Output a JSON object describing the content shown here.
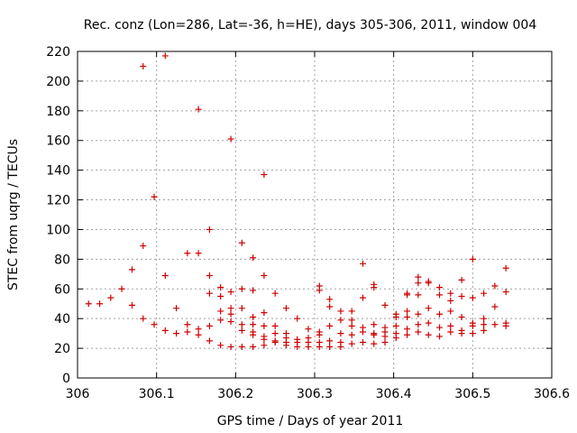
{
  "chart_data": {
    "type": "scatter",
    "title": "Rec. conz (Lon=286, Lat=-36, h=HE), days 305-306, 2011, window 004",
    "xlabel": "GPS time / Days of year 2011",
    "ylabel": "STEC from uqrg / TECUs",
    "xlim": [
      306.0,
      306.6
    ],
    "ylim": [
      0,
      220
    ],
    "xticks": [
      306,
      306.1,
      306.2,
      306.3,
      306.4,
      306.5,
      306.6
    ],
    "xtick_labels": [
      "306",
      "306.1",
      "306.2",
      "306.3",
      "306.4",
      "306.5",
      "306.6"
    ],
    "yticks": [
      0,
      20,
      40,
      60,
      80,
      100,
      120,
      140,
      160,
      180,
      200,
      220
    ],
    "ytick_labels": [
      "0",
      "20",
      "40",
      "60",
      "80",
      "100",
      "120",
      "140",
      "160",
      "180",
      "200",
      "220"
    ],
    "grid": true,
    "marker": "+",
    "series_color": "#d00000",
    "series": [
      {
        "name": "STEC",
        "points": [
          [
            306.014,
            50
          ],
          [
            306.028,
            50
          ],
          [
            306.042,
            54
          ],
          [
            306.056,
            60
          ],
          [
            306.069,
            73
          ],
          [
            306.069,
            49
          ],
          [
            306.083,
            210
          ],
          [
            306.083,
            89
          ],
          [
            306.083,
            40
          ],
          [
            306.097,
            122
          ],
          [
            306.097,
            36
          ],
          [
            306.111,
            217
          ],
          [
            306.111,
            69
          ],
          [
            306.111,
            32
          ],
          [
            306.125,
            47
          ],
          [
            306.125,
            30
          ],
          [
            306.139,
            84
          ],
          [
            306.139,
            36
          ],
          [
            306.139,
            31
          ],
          [
            306.153,
            181
          ],
          [
            306.153,
            84
          ],
          [
            306.153,
            33
          ],
          [
            306.153,
            29
          ],
          [
            306.167,
            100
          ],
          [
            306.167,
            69
          ],
          [
            306.167,
            57
          ],
          [
            306.167,
            35
          ],
          [
            306.167,
            25
          ],
          [
            306.181,
            61
          ],
          [
            306.181,
            55
          ],
          [
            306.181,
            45
          ],
          [
            306.181,
            39
          ],
          [
            306.181,
            22
          ],
          [
            306.194,
            161
          ],
          [
            306.194,
            58
          ],
          [
            306.194,
            47
          ],
          [
            306.194,
            43
          ],
          [
            306.194,
            38
          ],
          [
            306.194,
            21
          ],
          [
            306.208,
            91
          ],
          [
            306.208,
            60
          ],
          [
            306.208,
            47
          ],
          [
            306.208,
            36
          ],
          [
            306.208,
            32
          ],
          [
            306.208,
            21
          ],
          [
            306.222,
            81
          ],
          [
            306.222,
            59
          ],
          [
            306.222,
            41
          ],
          [
            306.222,
            36
          ],
          [
            306.222,
            31
          ],
          [
            306.222,
            29
          ],
          [
            306.222,
            21
          ],
          [
            306.236,
            137
          ],
          [
            306.236,
            69
          ],
          [
            306.236,
            44
          ],
          [
            306.236,
            35
          ],
          [
            306.236,
            28
          ],
          [
            306.236,
            26
          ],
          [
            306.236,
            22
          ],
          [
            306.25,
            57
          ],
          [
            306.25,
            35
          ],
          [
            306.25,
            30
          ],
          [
            306.25,
            25
          ],
          [
            306.25,
            24
          ],
          [
            306.264,
            47
          ],
          [
            306.264,
            30
          ],
          [
            306.264,
            27
          ],
          [
            306.264,
            24
          ],
          [
            306.264,
            22
          ],
          [
            306.278,
            40
          ],
          [
            306.278,
            26
          ],
          [
            306.278,
            24
          ],
          [
            306.278,
            21
          ],
          [
            306.292,
            33
          ],
          [
            306.292,
            27
          ],
          [
            306.292,
            24
          ],
          [
            306.292,
            21
          ],
          [
            306.306,
            62
          ],
          [
            306.306,
            59
          ],
          [
            306.306,
            31
          ],
          [
            306.306,
            29
          ],
          [
            306.306,
            24
          ],
          [
            306.306,
            21
          ],
          [
            306.319,
            53
          ],
          [
            306.319,
            48
          ],
          [
            306.319,
            35
          ],
          [
            306.319,
            25
          ],
          [
            306.319,
            21
          ],
          [
            306.333,
            45
          ],
          [
            306.333,
            39
          ],
          [
            306.333,
            30
          ],
          [
            306.333,
            24
          ],
          [
            306.333,
            21
          ],
          [
            306.347,
            45
          ],
          [
            306.347,
            39
          ],
          [
            306.347,
            35
          ],
          [
            306.347,
            29
          ],
          [
            306.347,
            23
          ],
          [
            306.361,
            77
          ],
          [
            306.361,
            54
          ],
          [
            306.361,
            34
          ],
          [
            306.361,
            31
          ],
          [
            306.361,
            24
          ],
          [
            306.375,
            63
          ],
          [
            306.375,
            61
          ],
          [
            306.375,
            36
          ],
          [
            306.375,
            30
          ],
          [
            306.375,
            29
          ],
          [
            306.375,
            23
          ],
          [
            306.389,
            49
          ],
          [
            306.389,
            34
          ],
          [
            306.389,
            31
          ],
          [
            306.389,
            28
          ],
          [
            306.389,
            24
          ],
          [
            306.403,
            43
          ],
          [
            306.403,
            41
          ],
          [
            306.403,
            35
          ],
          [
            306.403,
            30
          ],
          [
            306.403,
            27
          ],
          [
            306.417,
            57
          ],
          [
            306.417,
            56
          ],
          [
            306.417,
            45
          ],
          [
            306.417,
            41
          ],
          [
            306.417,
            33
          ],
          [
            306.417,
            29
          ],
          [
            306.431,
            68
          ],
          [
            306.431,
            64
          ],
          [
            306.431,
            56
          ],
          [
            306.431,
            43
          ],
          [
            306.431,
            36
          ],
          [
            306.431,
            31
          ],
          [
            306.444,
            65
          ],
          [
            306.444,
            64
          ],
          [
            306.444,
            47
          ],
          [
            306.444,
            37
          ],
          [
            306.444,
            29
          ],
          [
            306.458,
            61
          ],
          [
            306.458,
            56
          ],
          [
            306.458,
            43
          ],
          [
            306.458,
            34
          ],
          [
            306.458,
            28
          ],
          [
            306.472,
            57
          ],
          [
            306.472,
            52
          ],
          [
            306.472,
            45
          ],
          [
            306.472,
            35
          ],
          [
            306.472,
            31
          ],
          [
            306.486,
            66
          ],
          [
            306.486,
            55
          ],
          [
            306.486,
            41
          ],
          [
            306.486,
            32
          ],
          [
            306.486,
            30
          ],
          [
            306.5,
            80
          ],
          [
            306.5,
            54
          ],
          [
            306.5,
            37
          ],
          [
            306.5,
            35
          ],
          [
            306.5,
            30
          ],
          [
            306.514,
            57
          ],
          [
            306.514,
            40
          ],
          [
            306.514,
            36
          ],
          [
            306.514,
            32
          ],
          [
            306.528,
            62
          ],
          [
            306.528,
            48
          ],
          [
            306.528,
            36
          ],
          [
            306.542,
            74
          ],
          [
            306.542,
            58
          ],
          [
            306.542,
            37
          ],
          [
            306.542,
            35
          ]
        ]
      }
    ]
  }
}
